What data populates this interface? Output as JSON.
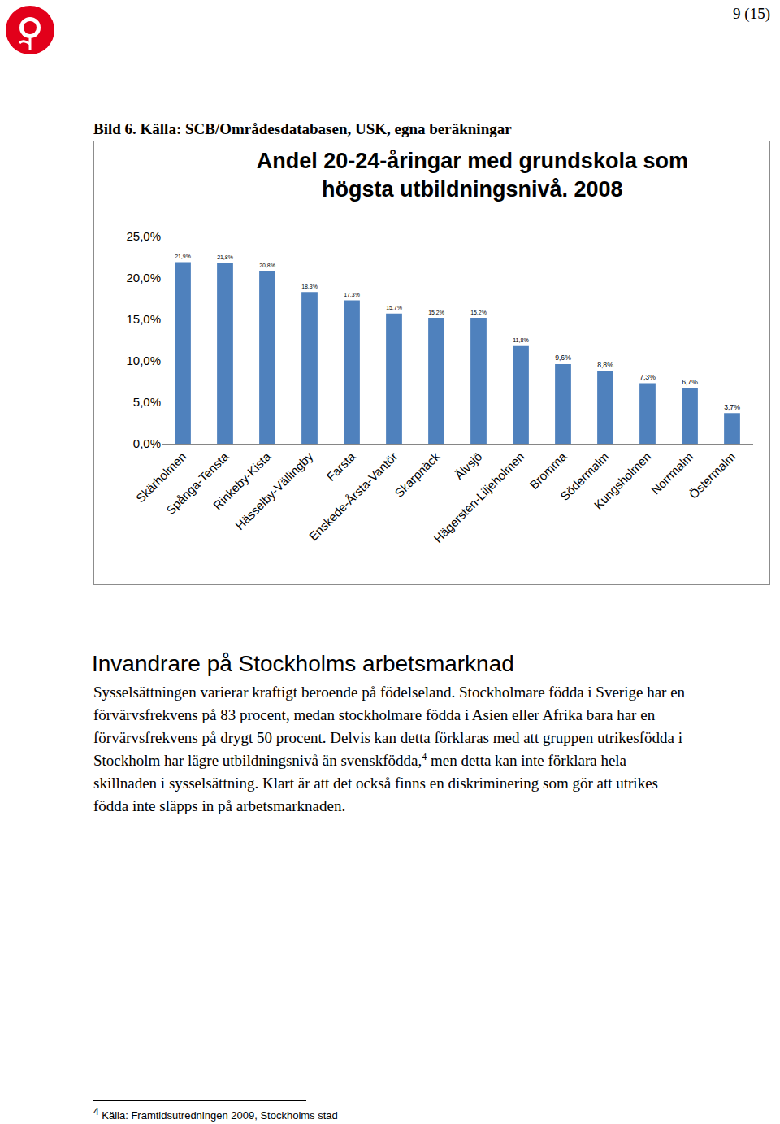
{
  "page_number": "9 (15)",
  "caption": "Bild 6. Källa: SCB/Områdesdatabasen, USK, egna beräkningar",
  "chart_data": {
    "type": "bar",
    "title": "Andel 20-24-åringar med grundskola som\nhögsta utbildningsnivå. 2008",
    "categories": [
      "Skärholmen",
      "Spånga-Tensta",
      "Rinkeby-Kista",
      "Hässelby-Vällingby",
      "Farsta",
      "Enskede-Årsta-Vantör",
      "Skarpnäck",
      "Älvsjö",
      "Hägersten-Liljeholmen",
      "Bromma",
      "Södermalm",
      "Kungsholmen",
      "Norrmalm",
      "Östermalm"
    ],
    "values": [
      21.9,
      21.8,
      20.8,
      18.3,
      17.3,
      15.7,
      15.2,
      15.2,
      11.8,
      9.6,
      8.8,
      7.3,
      6.7,
      3.7
    ],
    "value_labels": [
      "21,9%",
      "21,8%",
      "20,8%",
      "18,3%",
      "17,3%",
      "15,7%",
      "15,2%",
      "15,2%",
      "11,8%",
      "9,6%",
      "8,8%",
      "7,3%",
      "6,7%",
      "3,7%"
    ],
    "color": "#4f81bd",
    "ylim": [
      0,
      25
    ],
    "yticks": [
      {
        "value": 0,
        "label": "0,0%"
      },
      {
        "value": 5,
        "label": "5,0%"
      },
      {
        "value": 10,
        "label": "10,0%"
      },
      {
        "value": 15,
        "label": "15,0%"
      },
      {
        "value": 20,
        "label": "20,0%"
      },
      {
        "value": 25,
        "label": "25,0%"
      }
    ],
    "grid": false,
    "data_labels": true
  },
  "section": {
    "heading": "Invandrare på Stockholms arbetsmarknad",
    "paragraph_before_note": "Sysselsättningen varierar kraftigt beroende på födelseland. Stockholmare födda i Sverige har en förvärvsfrekvens på 83 procent, medan stockholmare födda i Asien eller Afrika bara har en förvärvsfrekvens på drygt 50 procent. Delvis kan detta förklaras med att gruppen utrikesfödda i Stockholm har lägre utbildningsnivå än svenskfödda,",
    "paragraph_after_note": " men detta kan inte förklara hela skillnaden i sysselsättning. Klart är att det också finns en diskriminering som gör att utrikes födda inte släpps in på arbetsmarknaden."
  },
  "footnote": {
    "mark": "4",
    "text": "Källa: Framtidsutredningen 2009, Stockholms stad"
  }
}
